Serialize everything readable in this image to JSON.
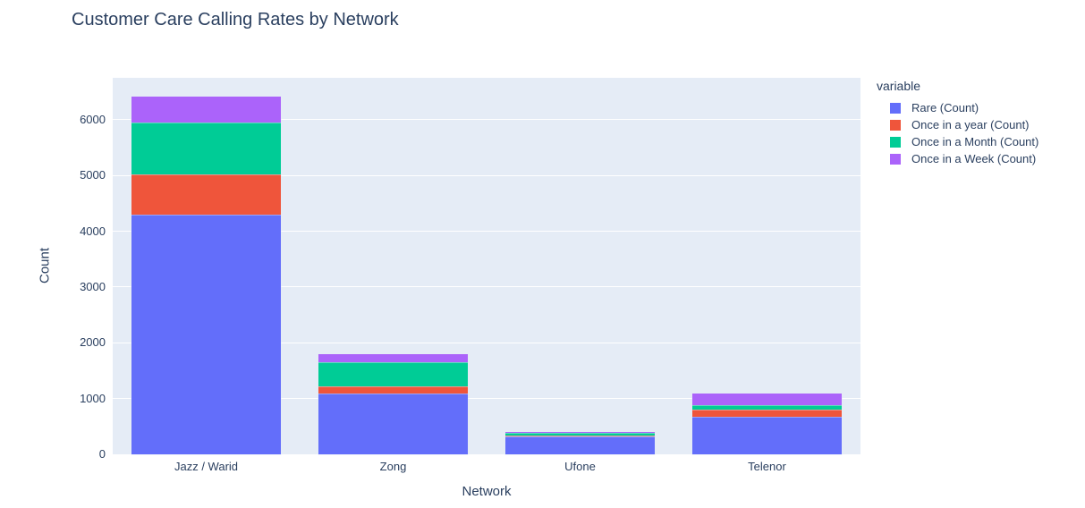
{
  "chart_data": {
    "type": "bar",
    "stacked": true,
    "title": "Customer Care Calling Rates by Network",
    "xlabel": "Network",
    "ylabel": "Count",
    "legend_title": "variable",
    "legend_position": "right",
    "grid": true,
    "categories": [
      "Jazz / Warid",
      "Zong",
      "Ufone",
      "Telenor"
    ],
    "series": [
      {
        "name": "Rare (Count)",
        "color": "#636EFA",
        "values": [
          4300,
          1090,
          325,
          675
        ]
      },
      {
        "name": "Once in a year (Count)",
        "color": "#EF553B",
        "values": [
          720,
          130,
          5,
          120
        ]
      },
      {
        "name": "Once in a Month (Count)",
        "color": "#00CC96",
        "values": [
          930,
          430,
          60,
          95
        ]
      },
      {
        "name": "Once in a Week (Count)",
        "color": "#AB63FA",
        "values": [
          465,
          145,
          5,
          200
        ]
      }
    ],
    "yticks": [
      0,
      1000,
      2000,
      3000,
      4000,
      5000,
      6000
    ],
    "ylim": [
      0,
      6750
    ],
    "colors": {
      "plot_background": "#E5ECF6",
      "paper_background": "#FFFFFF",
      "grid": "#FFFFFF",
      "text": "#2A3F5F"
    }
  }
}
